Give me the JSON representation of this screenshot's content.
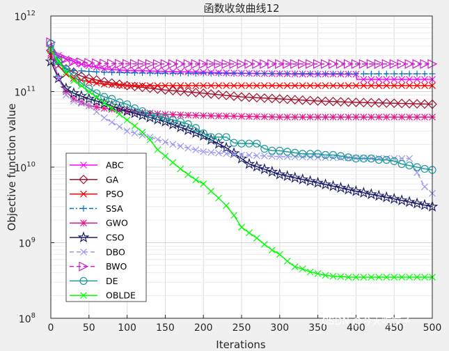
{
  "chart_data": {
    "type": "line",
    "title": "函数收敛曲线12",
    "xlabel": "Iterations",
    "ylabel": "Objective function value",
    "yscale": "log",
    "xlim": [
      0,
      500
    ],
    "ylim": [
      100000000.0,
      1000000000000.0
    ],
    "xticks": [
      "0",
      "50",
      "100",
      "150",
      "200",
      "250",
      "300",
      "350",
      "400",
      "450",
      "500"
    ],
    "yticks": [
      {
        "base": "10",
        "exp": "8"
      },
      {
        "base": "10",
        "exp": "9"
      },
      {
        "base": "10",
        "exp": "10"
      },
      {
        "base": "10",
        "exp": "11"
      },
      {
        "base": "10",
        "exp": "12"
      }
    ],
    "grid": true,
    "legend_position": "bottom-left",
    "series": [
      {
        "name": "ABC",
        "color": "#ff00ff",
        "marker": "x",
        "dash": "",
        "x": [
          0,
          10,
          20,
          30,
          40,
          50,
          70,
          100,
          150,
          200,
          250,
          300,
          350,
          400,
          401,
          420,
          450,
          500
        ],
        "y": [
          320000000000.0,
          300000000000.0,
          270000000000.0,
          250000000000.0,
          230000000000.0,
          220000000000.0,
          200000000000.0,
          190000000000.0,
          185000000000.0,
          180000000000.0,
          175000000000.0,
          172000000000.0,
          170000000000.0,
          170000000000.0,
          145000000000.0,
          145000000000.0,
          145000000000.0,
          145000000000.0
        ]
      },
      {
        "name": "GA",
        "color": "#a2142f",
        "marker": "diamond",
        "dash": "",
        "x": [
          0,
          10,
          20,
          30,
          40,
          50,
          70,
          100,
          150,
          200,
          250,
          300,
          350,
          400,
          450,
          500
        ],
        "y": [
          350000000000.0,
          250000000000.0,
          200000000000.0,
          180000000000.0,
          160000000000.0,
          150000000000.0,
          135000000000.0,
          120000000000.0,
          105000000000.0,
          95000000000.0,
          85000000000.0,
          80000000000.0,
          75000000000.0,
          72000000000.0,
          70000000000.0,
          68000000000.0
        ]
      },
      {
        "name": "PSO",
        "color": "#ff0000",
        "marker": "x",
        "dash": "",
        "x": [
          0,
          10,
          20,
          30,
          50,
          70,
          100,
          150,
          200,
          300,
          400,
          500
        ],
        "y": [
          300000000000.0,
          220000000000.0,
          170000000000.0,
          150000000000.0,
          135000000000.0,
          125000000000.0,
          120000000000.0,
          120000000000.0,
          120000000000.0,
          120000000000.0,
          120000000000.0,
          120000000000.0
        ]
      },
      {
        "name": "SSA",
        "color": "#0072bd",
        "marker": "plus",
        "dash": "6,3,2,3",
        "x": [
          0,
          10,
          20,
          30,
          50,
          70,
          100,
          150,
          200,
          300,
          400,
          500
        ],
        "y": [
          330000000000.0,
          230000000000.0,
          200000000000.0,
          190000000000.0,
          185000000000.0,
          180000000000.0,
          178000000000.0,
          175000000000.0,
          174000000000.0,
          173000000000.0,
          172000000000.0,
          172000000000.0
        ]
      },
      {
        "name": "GWO",
        "color": "#e6198c",
        "marker": "star",
        "dash": "",
        "x": [
          0,
          5,
          10,
          20,
          30,
          50,
          70,
          100,
          150,
          200,
          250,
          300,
          350,
          400,
          450,
          500
        ],
        "y": [
          360000000000.0,
          220000000000.0,
          150000000000.0,
          100000000000.0,
          80000000000.0,
          65000000000.0,
          60000000000.0,
          55000000000.0,
          50000000000.0,
          48000000000.0,
          47000000000.0,
          46000000000.0,
          46000000000.0,
          46000000000.0,
          46000000000.0,
          46000000000.0
        ]
      },
      {
        "name": "CSO",
        "color": "#1a1f66",
        "marker": "pentagram",
        "dash": "",
        "x": [
          0,
          10,
          20,
          30,
          50,
          70,
          100,
          150,
          200,
          230,
          260,
          300,
          350,
          400,
          450,
          500
        ],
        "y": [
          250000000000.0,
          150000000000.0,
          110000000000.0,
          95000000000.0,
          80000000000.0,
          70000000000.0,
          55000000000.0,
          40000000000.0,
          26000000000.0,
          18000000000.0,
          11000000000.0,
          8000000000.0,
          6200000000.0,
          4800000000.0,
          3800000000.0,
          3000000000.0
        ]
      },
      {
        "name": "DBO",
        "color": "#9999f0",
        "marker": "x",
        "dash": "6,4",
        "x": [
          0,
          10,
          20,
          30,
          50,
          70,
          100,
          130,
          160,
          200,
          250,
          300,
          350,
          400,
          450,
          470,
          490,
          500
        ],
        "y": [
          380000000000.0,
          150000000000.0,
          90000000000.0,
          75000000000.0,
          65000000000.0,
          45000000000.0,
          30000000000.0,
          25000000000.0,
          20000000000.0,
          16000000000.0,
          14500000000.0,
          13800000000.0,
          13500000000.0,
          13200000000.0,
          13000000000.0,
          13000000000.0,
          5500000000.0,
          4500000000.0
        ]
      },
      {
        "name": "BWO",
        "color": "#cc1fcc",
        "marker": "triangle-right",
        "dash": "6,4",
        "x": [
          0,
          5,
          10,
          20,
          30,
          50,
          70,
          100,
          150,
          200,
          300,
          400,
          500
        ],
        "y": [
          450000000000.0,
          350000000000.0,
          300000000000.0,
          270000000000.0,
          250000000000.0,
          240000000000.0,
          235000000000.0,
          233000000000.0,
          232000000000.0,
          232000000000.0,
          232000000000.0,
          232000000000.0,
          232000000000.0
        ]
      },
      {
        "name": "DE",
        "color": "#1e9999",
        "marker": "circle",
        "dash": "",
        "x": [
          0,
          10,
          20,
          30,
          40,
          50,
          60,
          70,
          80,
          90,
          100,
          110,
          120,
          130,
          140,
          150,
          160,
          170,
          180,
          190,
          200,
          210,
          220,
          230,
          240,
          250,
          260,
          270,
          280,
          290,
          300,
          310,
          320,
          330,
          340,
          350,
          360,
          370,
          380,
          390,
          400,
          410,
          420,
          430,
          440,
          450,
          460,
          470,
          480,
          490,
          500
        ],
        "y": [
          430000000000.0,
          260000000000.0,
          200000000000.0,
          160000000000.0,
          130000000000.0,
          110000000000.0,
          95000000000.0,
          85000000000.0,
          80000000000.0,
          72000000000.0,
          68000000000.0,
          60000000000.0,
          55000000000.0,
          50000000000.0,
          47000000000.0,
          45000000000.0,
          42000000000.0,
          40000000000.0,
          37000000000.0,
          33000000000.0,
          28000000000.0,
          25000000000.0,
          25000000000.0,
          25000000000.0,
          21000000000.0,
          20500000000.0,
          20500000000.0,
          20500000000.0,
          17500000000.0,
          16500000000.0,
          16500000000.0,
          16000000000.0,
          15500000000.0,
          15000000000.0,
          15000000000.0,
          15000000000.0,
          14500000000.0,
          14500000000.0,
          14000000000.0,
          13500000000.0,
          13000000000.0,
          13000000000.0,
          13000000000.0,
          12500000000.0,
          12500000000.0,
          12000000000.0,
          11000000000.0,
          10500000000.0,
          10000000000.0,
          9500000000.0,
          9200000000.0
        ]
      },
      {
        "name": "OBLDE",
        "color": "#00ff00",
        "marker": "x",
        "dash": "",
        "x": [
          0,
          10,
          20,
          30,
          40,
          50,
          60,
          70,
          80,
          90,
          100,
          110,
          120,
          130,
          140,
          150,
          160,
          170,
          180,
          190,
          200,
          210,
          220,
          230,
          240,
          250,
          260,
          270,
          280,
          290,
          300,
          310,
          320,
          330,
          340,
          350,
          360,
          370,
          380,
          390,
          400,
          410,
          420,
          430,
          440,
          450,
          460,
          470,
          480,
          490,
          500
        ],
        "y": [
          350000000000.0,
          250000000000.0,
          180000000000.0,
          140000000000.0,
          120000000000.0,
          100000000000.0,
          85000000000.0,
          70000000000.0,
          60000000000.0,
          50000000000.0,
          42000000000.0,
          35000000000.0,
          29000000000.0,
          23000000000.0,
          17000000000.0,
          14000000000.0,
          11500000000.0,
          9500000000.0,
          8000000000.0,
          6800000000.0,
          6000000000.0,
          4800000000.0,
          3900000000.0,
          3100000000.0,
          2300000000.0,
          1600000000.0,
          1350000000.0,
          1150000000.0,
          950000000.0,
          800000000.0,
          700000000.0,
          570000000.0,
          480000000.0,
          450000000.0,
          410000000.0,
          390000000.0,
          370000000.0,
          360000000.0,
          355000000.0,
          350000000.0,
          350000000.0,
          350000000.0,
          350000000.0,
          350000000.0,
          350000000.0,
          350000000.0,
          350000000.0,
          350000000.0,
          350000000.0,
          350000000.0,
          350000000.0
        ]
      }
    ]
  },
  "watermark": "CSDN @今天吃饺子"
}
